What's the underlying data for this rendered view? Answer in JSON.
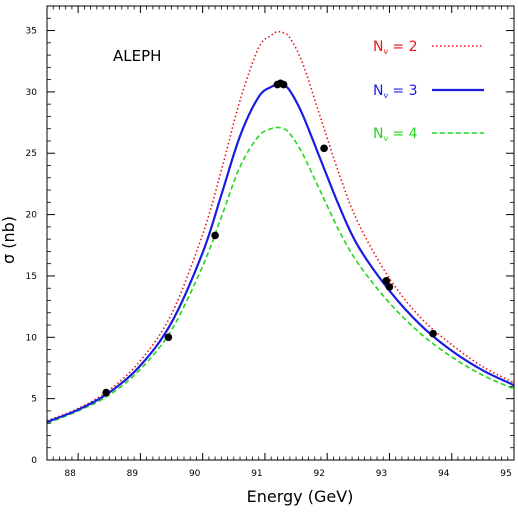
{
  "chart_data": {
    "type": "line",
    "title": "",
    "experiment_label": "ALEPH",
    "xlabel": "Energy  (GeV)",
    "ylabel": "σ  (nb)",
    "xlim": [
      87.5,
      95
    ],
    "ylim": [
      0,
      37
    ],
    "x_ticks": [
      88,
      89,
      90,
      91,
      92,
      93,
      94,
      95
    ],
    "x_tick_labels": [
      "88",
      "89",
      "90",
      "91",
      "92",
      "93",
      "94",
      "95"
    ],
    "y_ticks": [
      0,
      5,
      10,
      15,
      20,
      25,
      30,
      35
    ],
    "y_tick_labels": [
      "0",
      "5",
      "10",
      "15",
      "20",
      "25",
      "30",
      "35"
    ],
    "grid": false,
    "legend_position": "top-right",
    "series": [
      {
        "name": "N = 2",
        "legend_main": "N",
        "legend_sub": "ν",
        "legend_rest": " = 2",
        "color": "#e8161b",
        "style": "dotted",
        "x": [
          87.5,
          88.0,
          88.5,
          89.0,
          89.5,
          90.0,
          90.3,
          90.6,
          90.9,
          91.1,
          91.2,
          91.3,
          91.4,
          91.6,
          91.9,
          92.2,
          92.5,
          93.0,
          93.5,
          94.0,
          94.5,
          95.0
        ],
        "y": [
          3.2,
          4.2,
          5.7,
          8.1,
          11.9,
          18.4,
          23.6,
          29.3,
          33.6,
          34.6,
          34.9,
          34.8,
          34.4,
          32.4,
          27.8,
          23.2,
          19.3,
          14.8,
          11.6,
          9.4,
          7.6,
          6.3
        ]
      },
      {
        "name": "N = 3",
        "legend_main": "N",
        "legend_sub": "ν",
        "legend_rest": " = 3",
        "color": "#1a1de0",
        "style": "solid",
        "x": [
          87.5,
          88.0,
          88.5,
          89.0,
          89.5,
          90.0,
          90.3,
          90.6,
          90.9,
          91.1,
          91.2,
          91.3,
          91.4,
          91.6,
          91.9,
          92.2,
          92.5,
          93.0,
          93.5,
          94.0,
          94.5,
          95.0
        ],
        "y": [
          3.1,
          4.1,
          5.5,
          7.7,
          11.2,
          16.9,
          21.6,
          26.4,
          29.6,
          30.4,
          30.6,
          30.5,
          30.1,
          28.2,
          24.4,
          20.6,
          17.4,
          13.8,
          11.0,
          8.9,
          7.3,
          6.1
        ]
      },
      {
        "name": "N = 4",
        "legend_main": "N",
        "legend_sub": "ν",
        "legend_rest": " = 4",
        "color": "#22d61e",
        "style": "dashed",
        "x": [
          87.5,
          88.0,
          88.5,
          89.0,
          89.5,
          90.0,
          90.3,
          90.6,
          90.9,
          91.1,
          91.2,
          91.3,
          91.4,
          91.6,
          91.9,
          92.2,
          92.5,
          93.0,
          93.5,
          94.0,
          94.5,
          95.0
        ],
        "y": [
          3.0,
          4.0,
          5.3,
          7.4,
          10.6,
          15.8,
          19.8,
          23.9,
          26.4,
          27.0,
          27.1,
          27.0,
          26.6,
          25.0,
          21.8,
          18.6,
          16.0,
          12.8,
          10.3,
          8.4,
          6.9,
          5.8
        ]
      }
    ],
    "measurements": {
      "name": "ALEPH data",
      "color": "#000000",
      "x": [
        88.45,
        89.45,
        90.2,
        91.2,
        91.25,
        91.3,
        91.95,
        92.95,
        93.0,
        93.7
      ],
      "y": [
        5.5,
        10.0,
        18.3,
        30.6,
        30.7,
        30.6,
        25.4,
        14.6,
        14.1,
        10.3
      ]
    }
  }
}
